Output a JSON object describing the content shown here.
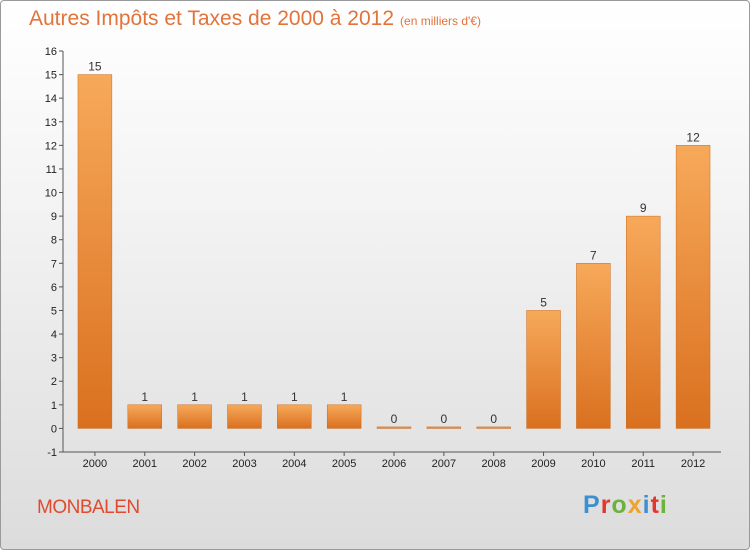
{
  "title": "Autres Impôts et Taxes de 2000 à 2012",
  "title_unit": "(en milliers d'€)",
  "town": "MONBALEN",
  "logo": {
    "text": "Proxiti",
    "colors": [
      "#3d8fd1",
      "#e0382e",
      "#6bb33a",
      "#f0a32c",
      "#3d8fd1",
      "#e0382e",
      "#6bb33a"
    ]
  },
  "colors": {
    "bar_top": "#f7a95a",
    "bar_bottom": "#d9701f",
    "title": "#e2733a",
    "town": "#e04a2e"
  },
  "chart_data": {
    "type": "bar",
    "title": "Autres Impôts et Taxes de 2000 à 2012",
    "subtitle": "(en milliers d'€)",
    "categories": [
      "2000",
      "2001",
      "2002",
      "2003",
      "2004",
      "2005",
      "2006",
      "2007",
      "2008",
      "2009",
      "2010",
      "2011",
      "2012"
    ],
    "values": [
      15,
      1,
      1,
      1,
      1,
      1,
      0,
      0,
      0,
      5,
      7,
      9,
      12
    ],
    "ylim": [
      -1,
      16
    ],
    "yticks": [
      -1,
      0,
      1,
      2,
      3,
      4,
      5,
      6,
      7,
      8,
      9,
      10,
      11,
      12,
      13,
      14,
      15,
      16
    ],
    "grid": false,
    "legend": "none"
  }
}
